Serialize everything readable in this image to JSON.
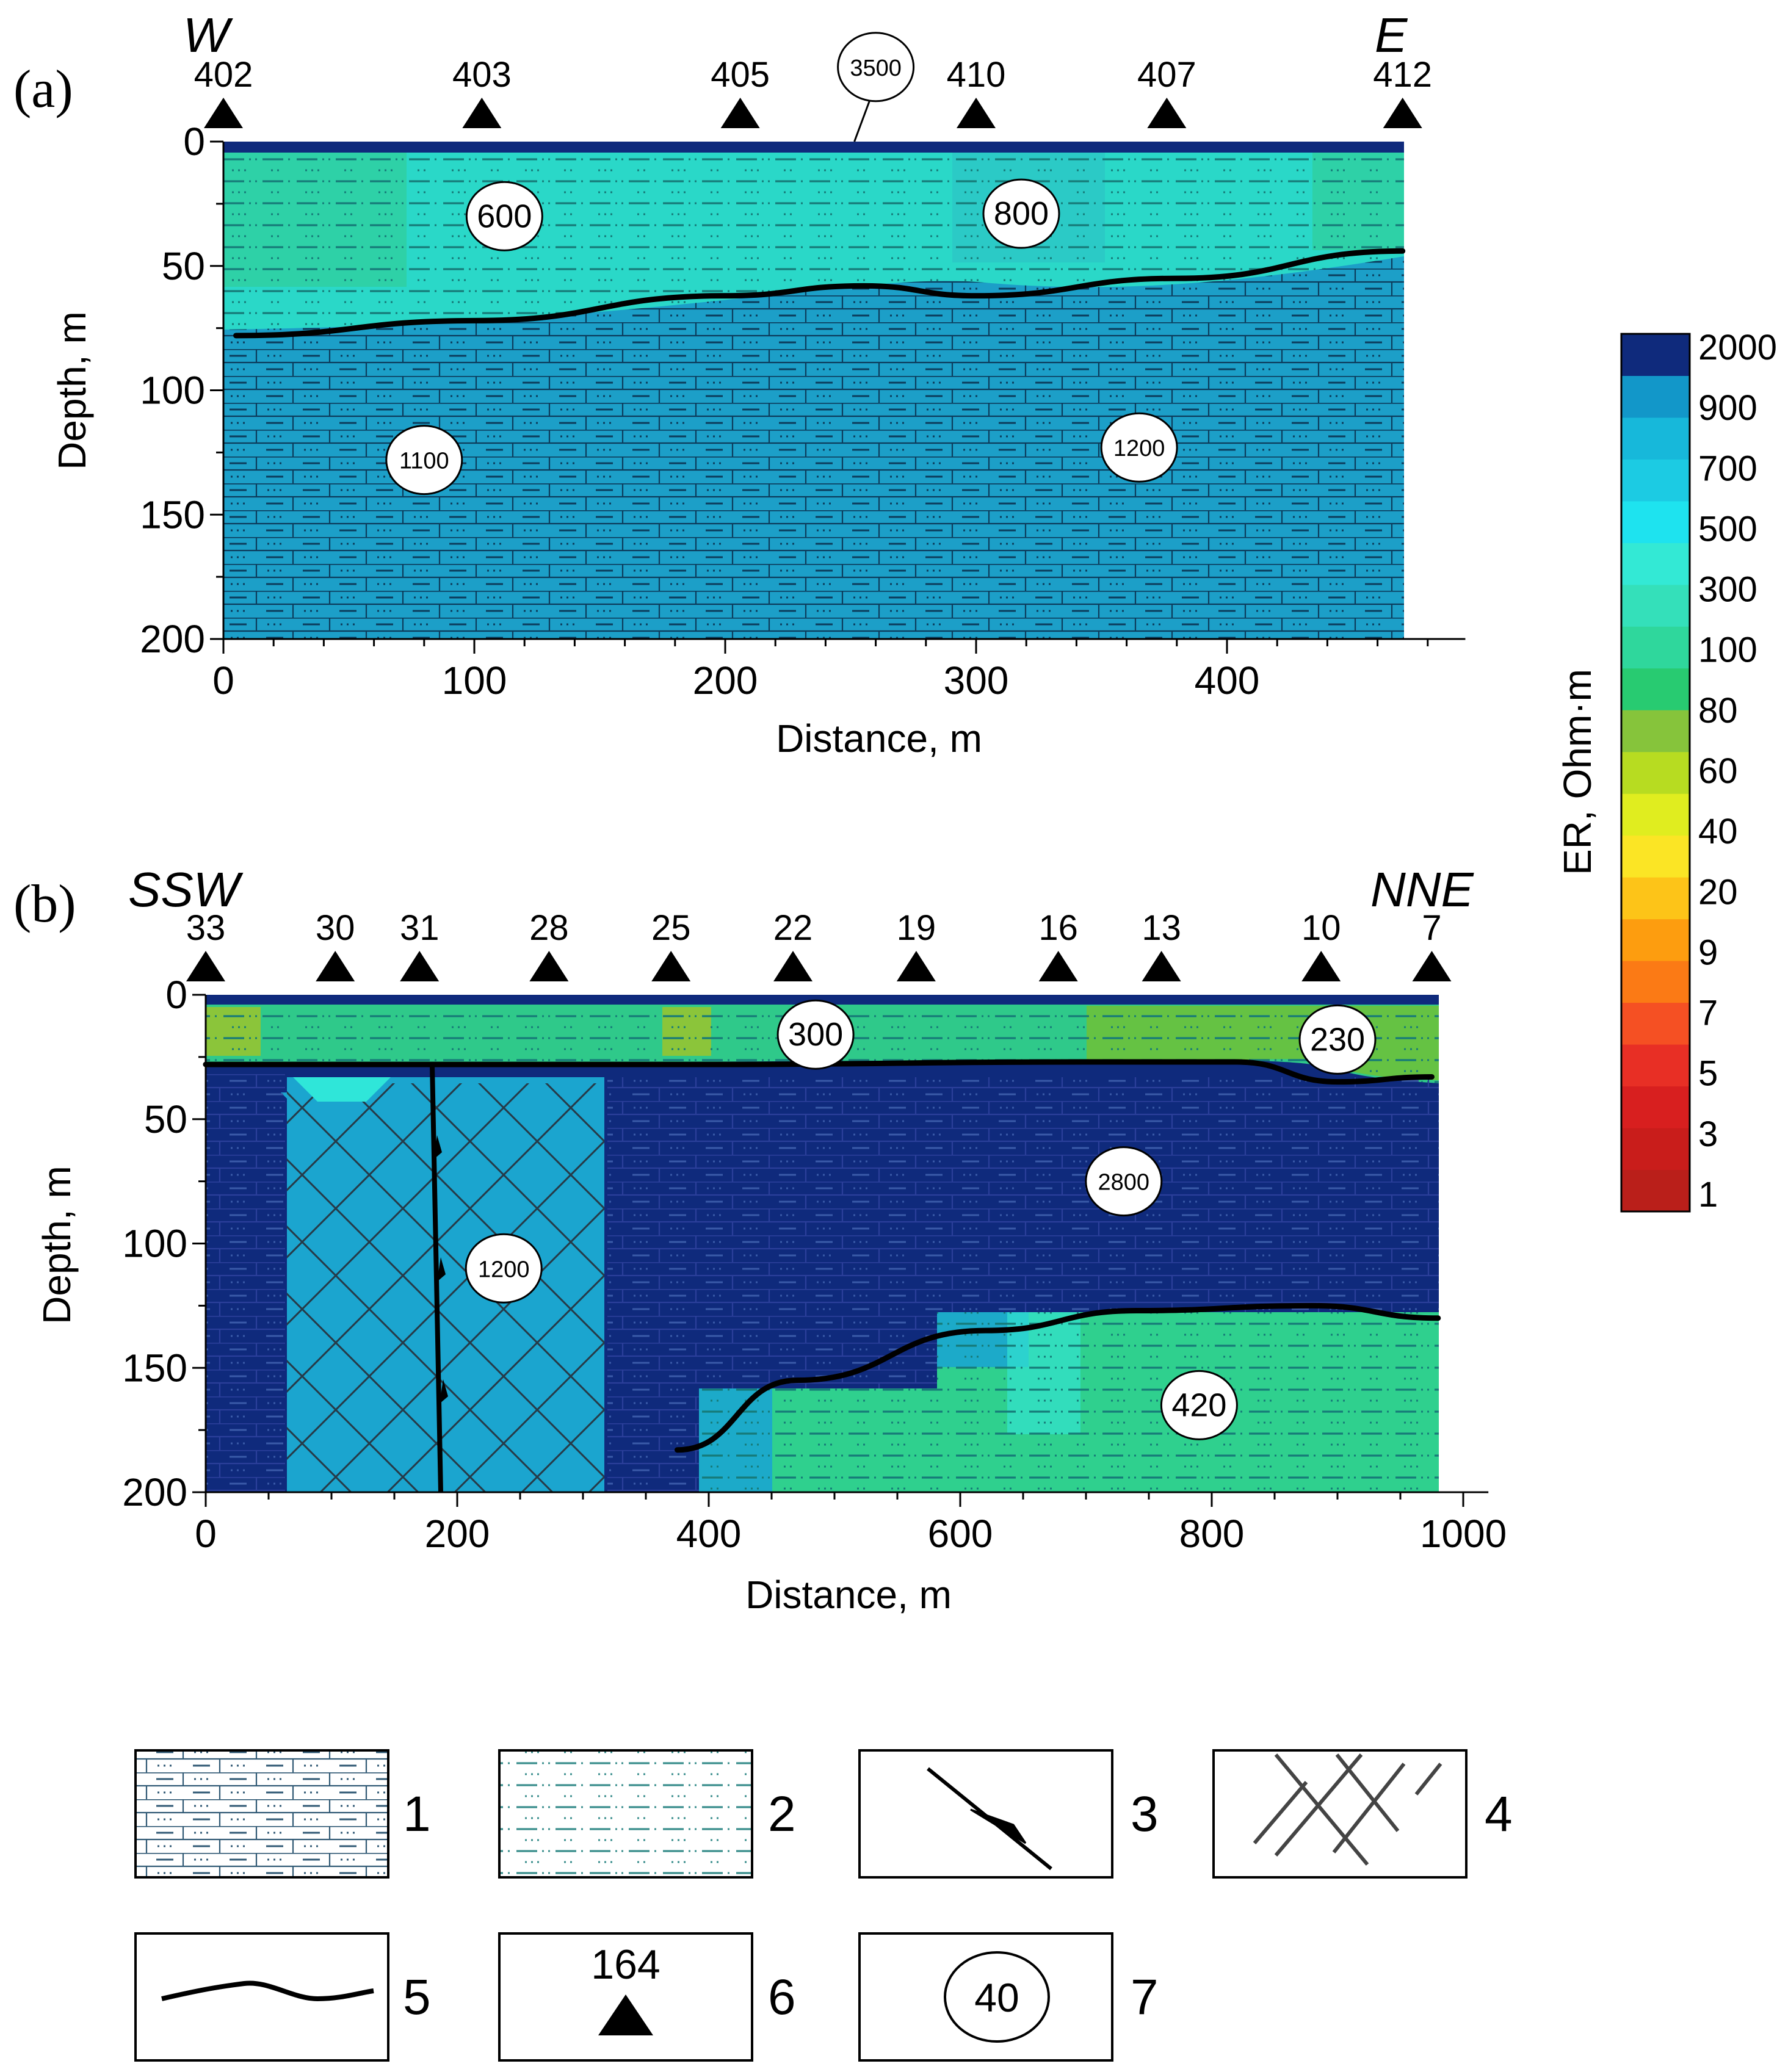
{
  "panel_a": {
    "label": "(a)",
    "dir_left": "W",
    "dir_right": "E",
    "stations": [
      {
        "id": "402",
        "dist": 0
      },
      {
        "id": "403",
        "dist": 103
      },
      {
        "id": "405",
        "dist": 206
      },
      {
        "id": "410",
        "dist": 300
      },
      {
        "id": "407",
        "dist": 376
      },
      {
        "id": "412",
        "dist": 470
      }
    ],
    "x_ticks": [
      "0",
      "100",
      "200",
      "300",
      "400"
    ],
    "y_ticks": [
      "0",
      "50",
      "100",
      "150",
      "200"
    ],
    "xlabel": "Distance, m",
    "ylabel": "Depth, m",
    "resistivity_labels": [
      {
        "text": "3500",
        "dist": 260,
        "depth": -30
      },
      {
        "text": "600",
        "dist": 112,
        "depth": 30
      },
      {
        "text": "800",
        "dist": 318,
        "depth": 29
      },
      {
        "text": "1100",
        "dist": 80,
        "depth": 128
      },
      {
        "text": "1200",
        "dist": 365,
        "depth": 123
      }
    ],
    "boundary": [
      [
        5,
        78
      ],
      [
        100,
        72
      ],
      [
        200,
        62
      ],
      [
        255,
        58
      ],
      [
        300,
        62
      ],
      [
        380,
        55
      ],
      [
        470,
        44
      ]
    ]
  },
  "panel_b": {
    "label": "(b)",
    "dir_left": "SSW",
    "dir_right": "NNE",
    "stations": [
      {
        "id": "33",
        "dist": 0
      },
      {
        "id": "30",
        "dist": 103
      },
      {
        "id": "31",
        "dist": 170
      },
      {
        "id": "28",
        "dist": 273
      },
      {
        "id": "25",
        "dist": 370
      },
      {
        "id": "22",
        "dist": 467
      },
      {
        "id": "19",
        "dist": 565
      },
      {
        "id": "16",
        "dist": 678
      },
      {
        "id": "13",
        "dist": 760
      },
      {
        "id": "10",
        "dist": 887
      },
      {
        "id": "7",
        "dist": 975
      }
    ],
    "x_ticks": [
      "0",
      "200",
      "400",
      "600",
      "800",
      "1000"
    ],
    "y_ticks": [
      "0",
      "50",
      "100",
      "150",
      "200"
    ],
    "xlabel": "Distance, m",
    "ylabel": "Depth, m",
    "resistivity_labels": [
      {
        "text": "300",
        "dist": 485,
        "depth": 16
      },
      {
        "text": "230",
        "dist": 900,
        "depth": 18
      },
      {
        "text": "2800",
        "dist": 730,
        "depth": 75
      },
      {
        "text": "1200",
        "dist": 237,
        "depth": 110
      },
      {
        "text": "420",
        "dist": 790,
        "depth": 165
      }
    ],
    "boundary_top": [
      [
        0,
        28
      ],
      [
        400,
        28
      ],
      [
        700,
        27
      ],
      [
        820,
        27
      ],
      [
        900,
        35
      ],
      [
        975,
        33
      ]
    ],
    "boundary_lower": [
      [
        375,
        183
      ],
      [
        470,
        155
      ],
      [
        620,
        135
      ],
      [
        740,
        127
      ],
      [
        880,
        125
      ],
      [
        980,
        130
      ]
    ]
  },
  "colorbar": {
    "title": "ER, Ohm·m",
    "labels": [
      "2000",
      "900",
      "700",
      "500",
      "300",
      "100",
      "80",
      "60",
      "40",
      "20",
      "9",
      "7",
      "5",
      "3",
      "1"
    ],
    "colors": [
      "#ba1f1a",
      "#c91d1b",
      "#d81f1f",
      "#e82f25",
      "#f55023",
      "#fb7a15",
      "#fd9d0f",
      "#fdc418",
      "#fbe525",
      "#e0ed1f",
      "#b7dc21",
      "#86c43b",
      "#28cb71",
      "#2fd79c",
      "#34e0ba",
      "#33e9d5",
      "#1ee3ef",
      "#1ccbe3",
      "#17b8da",
      "#1297c9",
      "#0f2a7c"
    ]
  },
  "legend": {
    "items": [
      {
        "num": "1"
      },
      {
        "num": "2"
      },
      {
        "num": "3"
      },
      {
        "num": "4"
      },
      {
        "num": "5"
      },
      {
        "num": "6",
        "sample_label": "164"
      },
      {
        "num": "7",
        "sample_label": "40"
      }
    ]
  }
}
